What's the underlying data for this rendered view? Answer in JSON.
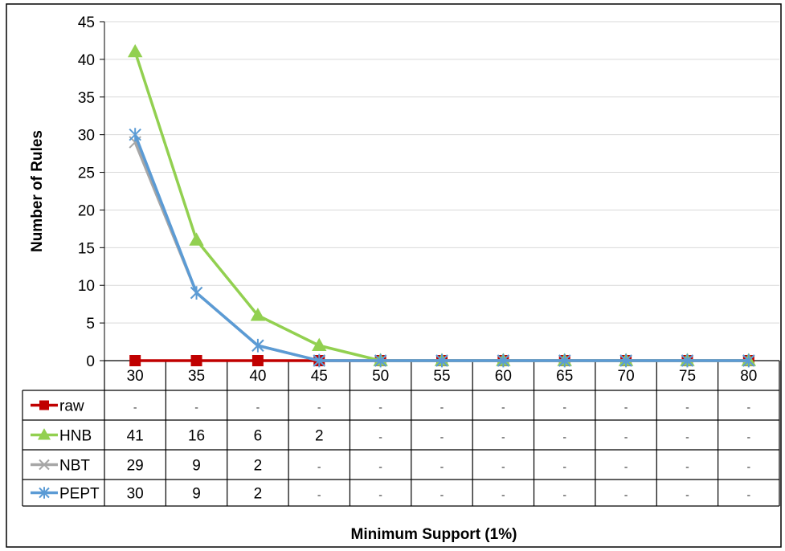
{
  "chart_data": {
    "type": "line",
    "title": "",
    "xlabel": "Minimum Support (1%)",
    "ylabel": "Number of Rules",
    "ylim": [
      0,
      45
    ],
    "yticks": [
      0,
      5,
      10,
      15,
      20,
      25,
      30,
      35,
      40,
      45
    ],
    "grid": true,
    "legend": "data-table",
    "categories": [
      "30",
      "35",
      "40",
      "45",
      "50",
      "55",
      "60",
      "65",
      "70",
      "75",
      "80"
    ],
    "series": [
      {
        "name": "raw",
        "color": "#c00000",
        "marker": "square",
        "values": [
          0,
          0,
          0,
          0,
          0,
          0,
          0,
          0,
          0,
          0,
          0
        ],
        "table": [
          "-",
          "-",
          "-",
          "-",
          "-",
          "-",
          "-",
          "-",
          "-",
          "-",
          "-"
        ]
      },
      {
        "name": "HNB",
        "color": "#92d050",
        "marker": "triangle",
        "values": [
          41,
          16,
          6,
          2,
          0,
          0,
          0,
          0,
          0,
          0,
          0
        ],
        "table": [
          "41",
          "16",
          "6",
          "2",
          "-",
          "-",
          "-",
          "-",
          "-",
          "-",
          "-"
        ]
      },
      {
        "name": "NBT",
        "color": "#a6a6a6",
        "marker": "x",
        "values": [
          29,
          9,
          2,
          0,
          0,
          0,
          0,
          0,
          0,
          0,
          0
        ],
        "table": [
          "29",
          "9",
          "2",
          "-",
          "-",
          "-",
          "-",
          "-",
          "-",
          "-",
          "-"
        ]
      },
      {
        "name": "PEPT",
        "color": "#5b9bd5",
        "marker": "asterisk",
        "values": [
          30,
          9,
          2,
          0,
          0,
          0,
          0,
          0,
          0,
          0,
          0
        ],
        "table": [
          "30",
          "9",
          "2",
          "-",
          "-",
          "-",
          "-",
          "-",
          "-",
          "-",
          "-"
        ]
      }
    ]
  }
}
